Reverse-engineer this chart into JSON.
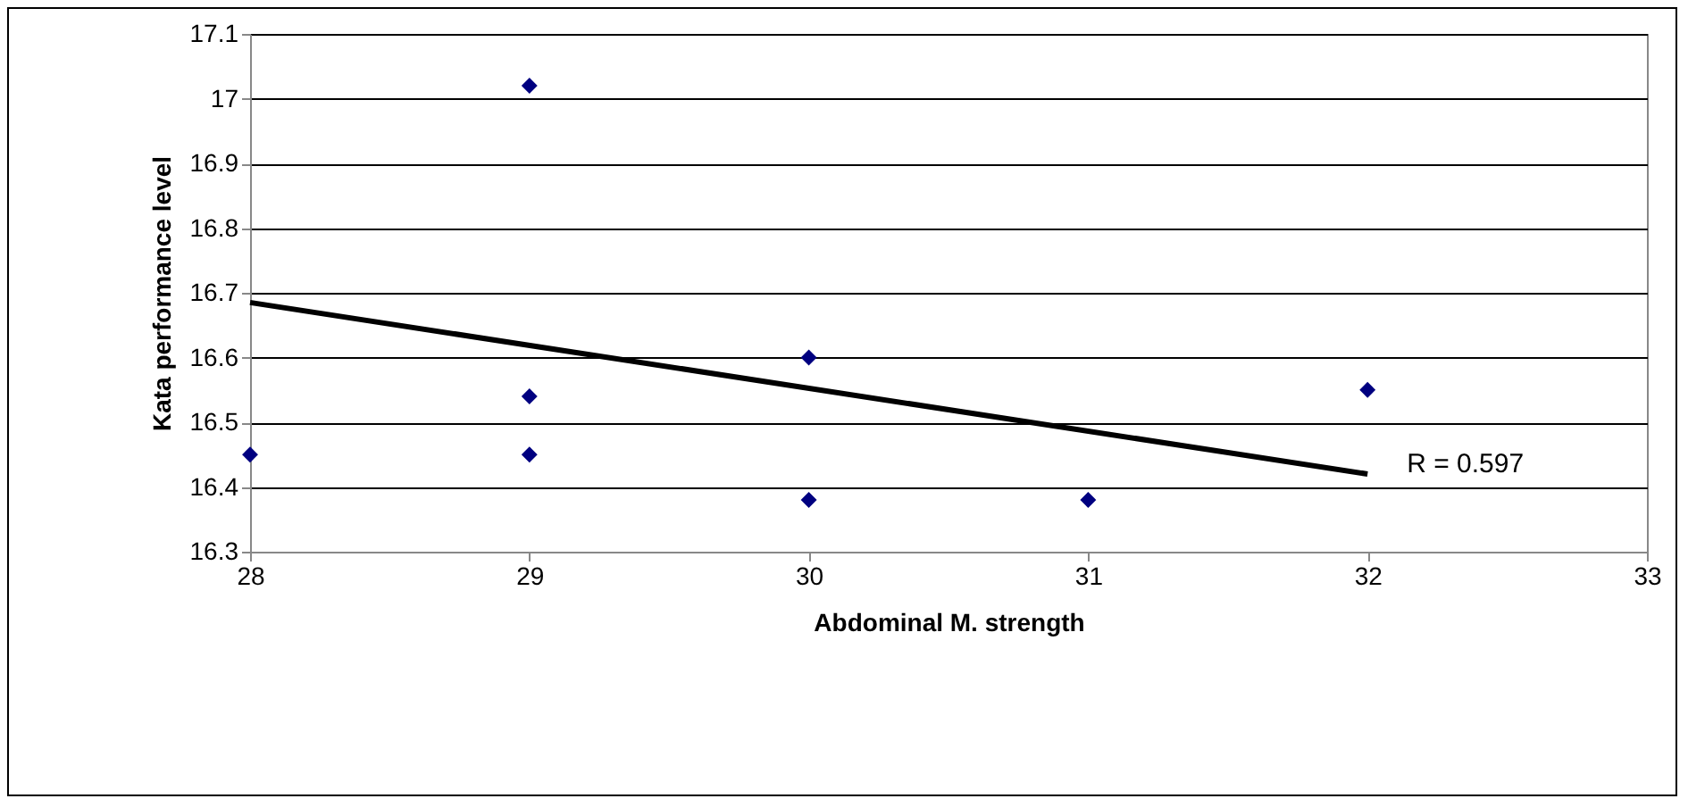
{
  "chart_data": {
    "type": "scatter",
    "xlabel": "Abdominal M. strength",
    "ylabel": "Kata performance level",
    "marker": "diamond",
    "grid": "y",
    "xlim": [
      28,
      33
    ],
    "xticks": [
      28,
      29,
      30,
      31,
      32,
      33
    ],
    "ylim": [
      16.3,
      17.1
    ],
    "yticks": [
      16.3,
      16.4,
      16.5,
      16.6,
      16.7,
      16.8,
      16.9,
      17,
      17.1
    ],
    "series": [
      {
        "color": "#000080",
        "x": [
          28,
          29,
          29,
          29,
          30,
          30,
          31,
          32
        ],
        "values": [
          16.45,
          17.02,
          16.54,
          16.45,
          16.6,
          16.38,
          16.38,
          16.55
        ]
      },
      {
        "type": "line",
        "marker": "none",
        "color": "#000000",
        "x": [
          28,
          32
        ],
        "values": [
          16.685,
          16.42
        ]
      }
    ],
    "annotations": [
      "R = 0.597"
    ]
  }
}
